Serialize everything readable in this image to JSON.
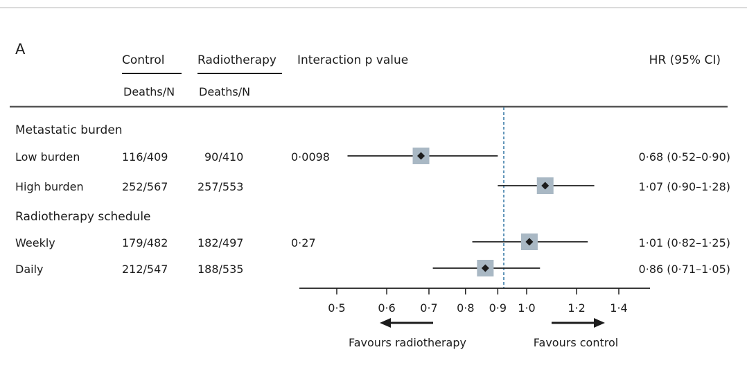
{
  "panel_label": "A",
  "headers": {
    "control": "Control",
    "radiotherapy": "Radiotherapy",
    "control_sub": "Deaths/N",
    "radiotherapy_sub": "Deaths/N",
    "interaction": "Interaction p value",
    "hr": "HR (95% CI)"
  },
  "groups": [
    {
      "title": "Metastatic burden",
      "rows": [
        {
          "label": "Low burden",
          "control": "116/409",
          "radiotherapy": "90/410",
          "p": "0·0098",
          "hr_text": "0·68 (0·52–0·90)"
        },
        {
          "label": "High burden",
          "control": "252/567",
          "radiotherapy": "257/553",
          "p": "",
          "hr_text": "1·07 (0·90–1·28)"
        }
      ]
    },
    {
      "title": "Radiotherapy schedule",
      "rows": [
        {
          "label": "Weekly",
          "control": "179/482",
          "radiotherapy": "182/497",
          "p": "0·27",
          "hr_text": "1·01 (0·82–1·25)"
        },
        {
          "label": "Daily",
          "control": "212/547",
          "radiotherapy": "188/535",
          "p": "",
          "hr_text": "0·86 (0·71–1·05)"
        }
      ]
    }
  ],
  "chart_data": {
    "type": "forest",
    "x_scale": "log",
    "ticks": [
      0.5,
      0.6,
      0.7,
      0.8,
      0.9,
      1.0,
      1.2,
      1.4
    ],
    "tick_labels": [
      "0·5",
      "0·6",
      "0·7",
      "0·8",
      "0·9",
      "1·0",
      "1·2",
      "1·4"
    ],
    "reference_line": 0.92,
    "points": [
      {
        "label": "Low burden",
        "hr": 0.68,
        "lo": 0.52,
        "hi": 0.9
      },
      {
        "label": "High burden",
        "hr": 1.07,
        "lo": 0.9,
        "hi": 1.28
      },
      {
        "label": "Weekly",
        "hr": 1.01,
        "lo": 0.82,
        "hi": 1.25
      },
      {
        "label": "Daily",
        "hr": 0.86,
        "lo": 0.71,
        "hi": 1.05
      }
    ],
    "favours_left": "Favours radiotherapy",
    "favours_right": "Favours control",
    "colors": {
      "box": "#a9b8c4",
      "line": "#1c1c1c",
      "reference": "#5f93b8",
      "rule": "#bdbdbd"
    }
  }
}
